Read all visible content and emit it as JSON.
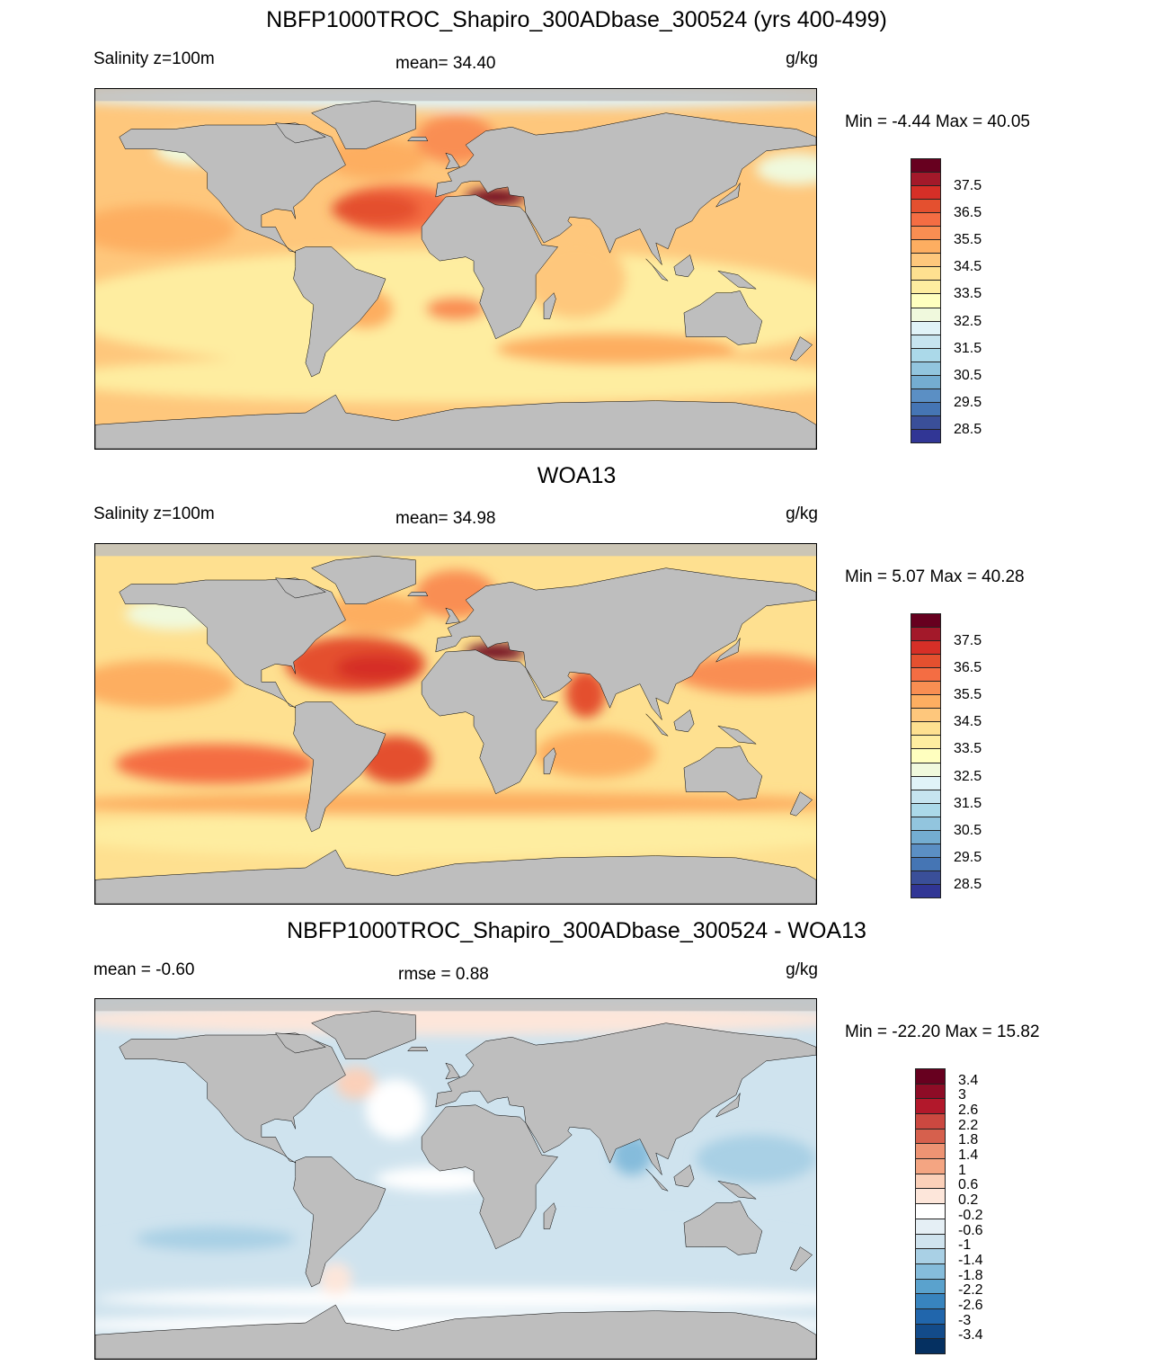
{
  "panels": [
    {
      "title": "NBFP1000TROC_Shapiro_300ADbase_300524 (yrs 400-499)",
      "left": "Salinity z=100m",
      "center": "mean=  34.40",
      "units": "g/kg",
      "minmax": "Min =  -4.44 Max =  40.05",
      "colorbar": {
        "labels": [
          "37.5",
          "36.5",
          "35.5",
          "34.5",
          "33.5",
          "32.5",
          "31.5",
          "30.5",
          "29.5",
          "28.5"
        ],
        "colors": [
          "#67001f",
          "#a3192a",
          "#d62f27",
          "#e4502f",
          "#f46d43",
          "#f98e52",
          "#fdae61",
          "#fec77c",
          "#fee090",
          "#feeda0",
          "#ffffbf",
          "#f0f9dd",
          "#e0f3f8",
          "#c6e4ef",
          "#abd9e9",
          "#92c5de",
          "#74add1",
          "#5b8fc4",
          "#4575b4",
          "#3a4f99",
          "#313695"
        ]
      }
    },
    {
      "title": "WOA13",
      "left": "Salinity z=100m",
      "center": "mean=  34.98",
      "units": "g/kg",
      "minmax": "Min =   5.07 Max =  40.28",
      "colorbar": {
        "labels": [
          "37.5",
          "36.5",
          "35.5",
          "34.5",
          "33.5",
          "32.5",
          "31.5",
          "30.5",
          "29.5",
          "28.5"
        ],
        "colors": [
          "#67001f",
          "#a3192a",
          "#d62f27",
          "#e4502f",
          "#f46d43",
          "#f98e52",
          "#fdae61",
          "#fec77c",
          "#fee090",
          "#feeda0",
          "#ffffbf",
          "#f0f9dd",
          "#e0f3f8",
          "#c6e4ef",
          "#abd9e9",
          "#92c5de",
          "#74add1",
          "#5b8fc4",
          "#4575b4",
          "#3a4f99",
          "#313695"
        ]
      }
    },
    {
      "title": "NBFP1000TROC_Shapiro_300ADbase_300524 - WOA13",
      "left": "mean =  -0.60",
      "center": "rmse =   0.88",
      "units": "g/kg",
      "minmax": "Min = -22.20 Max =  15.82",
      "colorbar": {
        "labels": [
          "3.4",
          "3",
          "2.6",
          "2.2",
          "1.8",
          "1.4",
          "1",
          "0.6",
          "0.2",
          "-0.2",
          "-0.6",
          "-1",
          "-1.4",
          "-1.8",
          "-2.2",
          "-2.6",
          "-3",
          "-3.4"
        ],
        "colors": [
          "#67001f",
          "#8e0c26",
          "#b2182b",
          "#cb4840",
          "#d6604d",
          "#ed9373",
          "#f4a582",
          "#fbd0b9",
          "#fde6da",
          "#ffffff",
          "#e5eff5",
          "#cfe3ee",
          "#a9d0e5",
          "#85bcdb",
          "#5aa2cd",
          "#3884be",
          "#2166ac",
          "#134b8a",
          "#053061"
        ]
      }
    }
  ],
  "land_color": "#bebebe"
}
